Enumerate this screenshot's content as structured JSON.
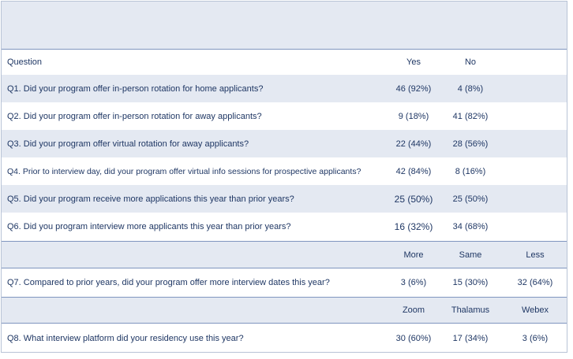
{
  "header": {
    "question": "Question",
    "yes": "Yes",
    "no": "No"
  },
  "yes_no_rows": [
    {
      "q": "Q1. Did your program offer in-person rotation for home applicants?",
      "yes": "46 (92%)",
      "no": "4 (8%)"
    },
    {
      "q": "Q2. Did your program offer in-person rotation for away applicants?",
      "yes": "9 (18%)",
      "no": "41 (82%)"
    },
    {
      "q": "Q3. Did your program offer virtual rotation for away applicants?",
      "yes": "22 (44%)",
      "no": "28 (56%)"
    },
    {
      "q": "Q4. Prior to interview day, did your program offer virtual info sessions for prospective applicants?",
      "yes": "42 (84%)",
      "no": "8 (16%)"
    },
    {
      "q": "Q5. Did your program receive more applications this year than prior years?",
      "yes": "25 (50%)",
      "no": "25 (50%)"
    },
    {
      "q": "Q6. Did you program interview more applicants this year than prior years?",
      "yes": "16 (32%)",
      "no": "34 (68%)"
    }
  ],
  "comparison_header": {
    "more": "More",
    "same": "Same",
    "less": "Less"
  },
  "q7": {
    "q": "Q7. Compared to prior years, did your program offer more interview dates this year?",
    "more": "3 (6%)",
    "same": "15 (30%)",
    "less": "32 (64%)"
  },
  "platform_header": {
    "zoom": "Zoom",
    "thalamus": "Thalamus",
    "webex": "Webex"
  },
  "q8": {
    "q": "Q8. What interview platform did your residency use this year?",
    "zoom": "30 (60%)",
    "thalamus": "17 (34%)",
    "webex": "3 (6%)"
  }
}
